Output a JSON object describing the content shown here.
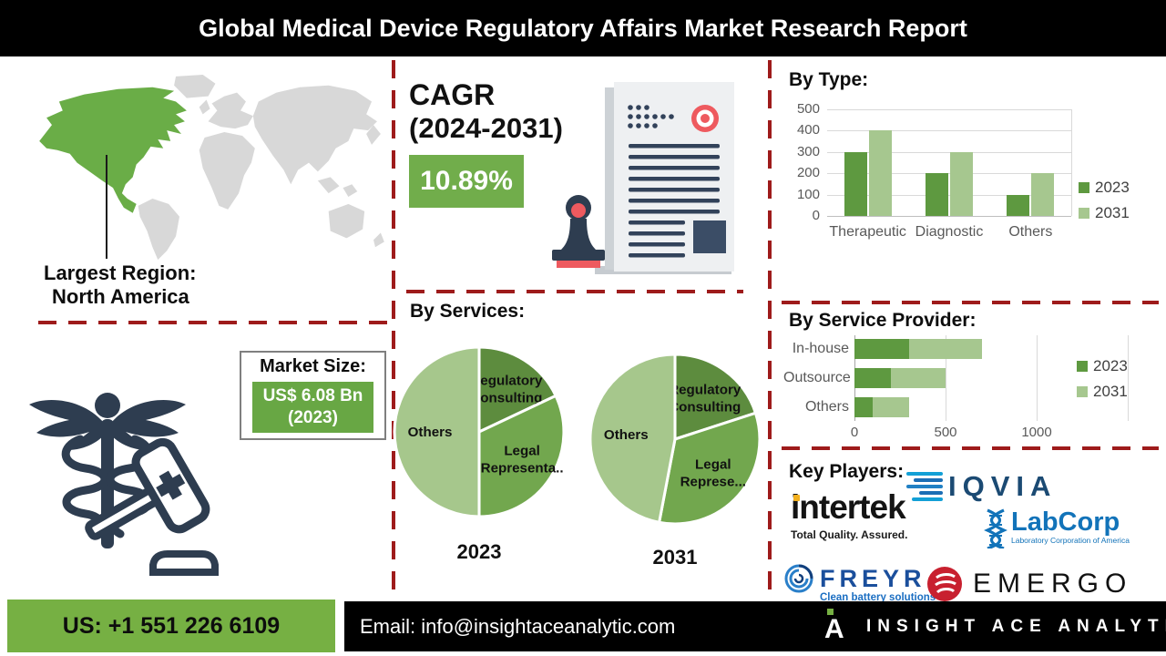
{
  "header": {
    "title": "Global Medical Device Regulatory Affairs Market Research Report"
  },
  "region": {
    "label": "Largest Region:",
    "value": "North America"
  },
  "market_size": {
    "label": "Market Size:",
    "value": "US$ 6.08 Bn",
    "year": "(2023)"
  },
  "cagr": {
    "label": "CAGR",
    "period": "(2024-2031)",
    "value": "10.89%"
  },
  "key_players": {
    "title": "Key Players:",
    "logos": [
      {
        "name": "IQVIA"
      },
      {
        "name": "intertek",
        "tagline": "Total Quality. Assured."
      },
      {
        "name": "LabCorp",
        "tagline": "Laboratory Corporation of America"
      },
      {
        "name": "FREYR",
        "tagline": "Clean battery solutions"
      },
      {
        "name": "EMERGO"
      }
    ]
  },
  "footer": {
    "phone": "US: +1 551 226 6109",
    "email": "Email: info@insightaceanalytic.com",
    "brand": "INSIGHT ACE ANALYTIC",
    "brand_icon_letter": "A"
  },
  "colors": {
    "header_bg": "#000000",
    "accent_green_box": "#71ad4b",
    "green_text": "#70ad47",
    "footer_green": "#76b043",
    "bar_2023": "#5e9940",
    "bar_2031": "#a6c78f",
    "pie_slices": [
      "#5d8c3e",
      "#72a74e",
      "#a6c78c"
    ],
    "dashed_red": "#9e1b1b",
    "dark_navy": "#2e3d50",
    "red_accent": "#ee5a5f"
  },
  "chart_data": [
    {
      "id": "by_type",
      "type": "bar",
      "title": "By Type:",
      "categories": [
        "Therapeutic",
        "Diagnostic",
        "Others"
      ],
      "series": [
        {
          "name": "2023",
          "values": [
            300,
            200,
            100
          ]
        },
        {
          "name": "2031",
          "values": [
            400,
            300,
            200
          ]
        }
      ],
      "ylim": [
        0,
        500
      ],
      "yticks": [
        0,
        100,
        200,
        300,
        400,
        500
      ],
      "grid": true,
      "legend_position": "right"
    },
    {
      "id": "by_services",
      "type": "pie",
      "title": "By Services:",
      "pies": [
        {
          "label": "2023",
          "slices": [
            {
              "name": "Regulatory Consulting",
              "value": 18
            },
            {
              "name": "Legal Representa..",
              "value": 32
            },
            {
              "name": "Others",
              "value": 50
            }
          ]
        },
        {
          "label": "2031",
          "slices": [
            {
              "name": "Regulatory Consulting",
              "value": 20
            },
            {
              "name": "Legal Represe...",
              "value": 33
            },
            {
              "name": "Others",
              "value": 47
            }
          ]
        }
      ]
    },
    {
      "id": "by_service_provider",
      "type": "bar",
      "orientation": "horizontal",
      "stacked": true,
      "title": "By Service Provider:",
      "categories": [
        "In-house",
        "Outsource",
        "Others"
      ],
      "series": [
        {
          "name": "2023",
          "values": [
            300,
            200,
            100
          ]
        },
        {
          "name": "2031",
          "values": [
            400,
            300,
            200
          ]
        }
      ],
      "xlim": [
        0,
        1000
      ],
      "xticks": [
        0,
        500,
        1000
      ],
      "grid": true,
      "legend_position": "right"
    }
  ]
}
